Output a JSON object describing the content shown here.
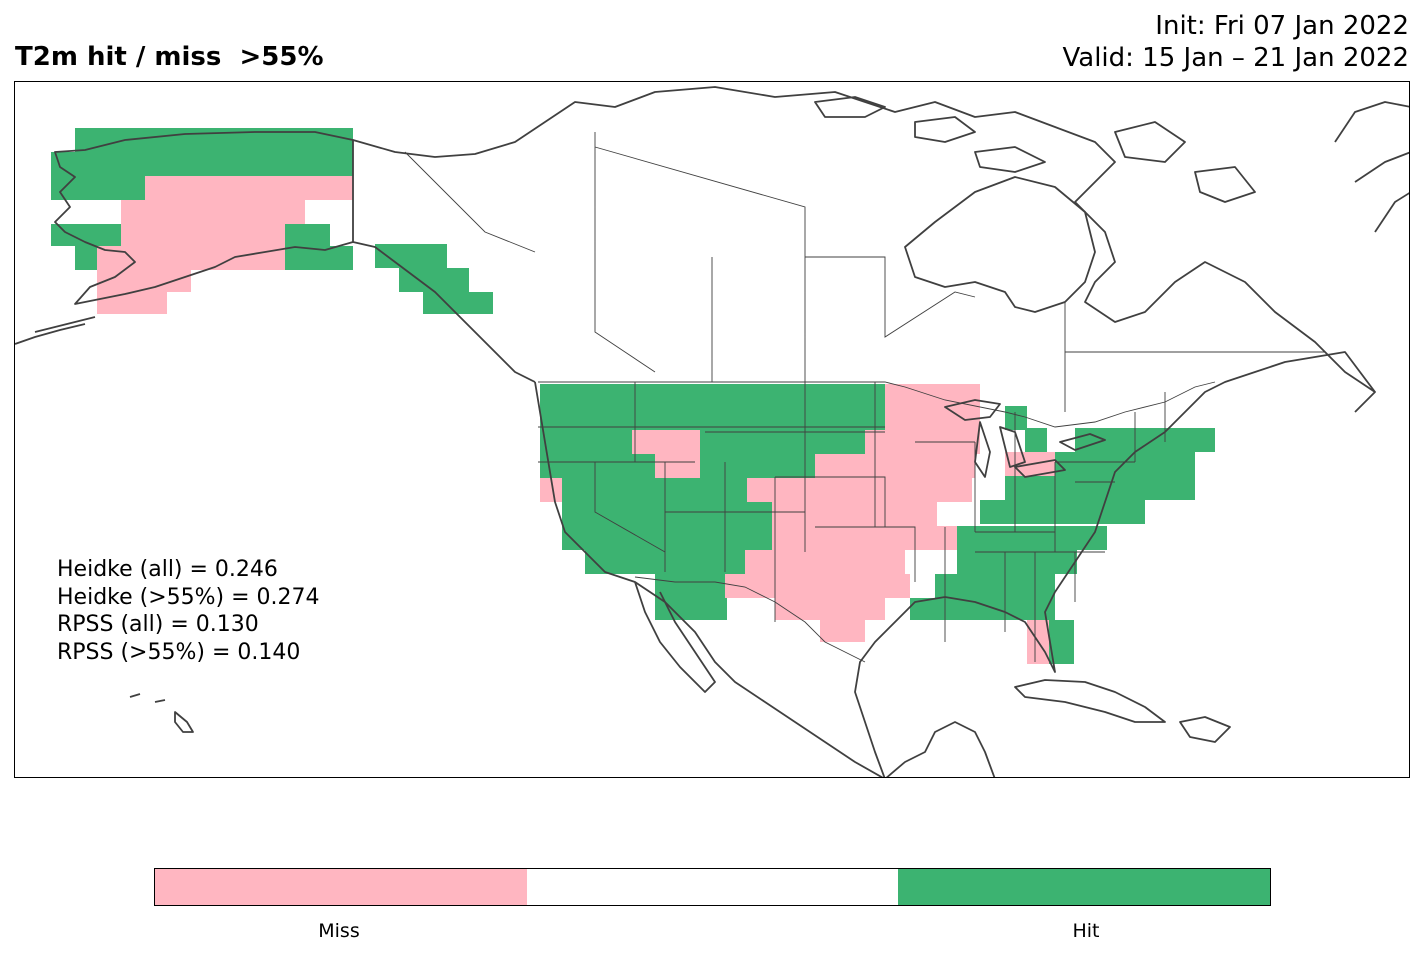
{
  "header": {
    "title": "T2m hit / miss  >55%",
    "init": "Init: Fri 07 Jan 2022",
    "valid": "Valid: 15 Jan – 21 Jan 2022"
  },
  "stats": [
    "Heidke (all) = 0.246",
    "Heidke (>55%) = 0.274",
    "RPSS (all) = 0.130",
    "RPSS (>55%) = 0.140"
  ],
  "colorbar": {
    "segments": [
      {
        "label": "Miss",
        "color": "#ffb6c1"
      },
      {
        "label": "",
        "color": "#ffffff"
      },
      {
        "label": "Hit",
        "color": "#3cb371"
      }
    ]
  },
  "colors": {
    "hit": "#3cb371",
    "miss": "#ffb6c1",
    "coastline": "#404040"
  }
}
